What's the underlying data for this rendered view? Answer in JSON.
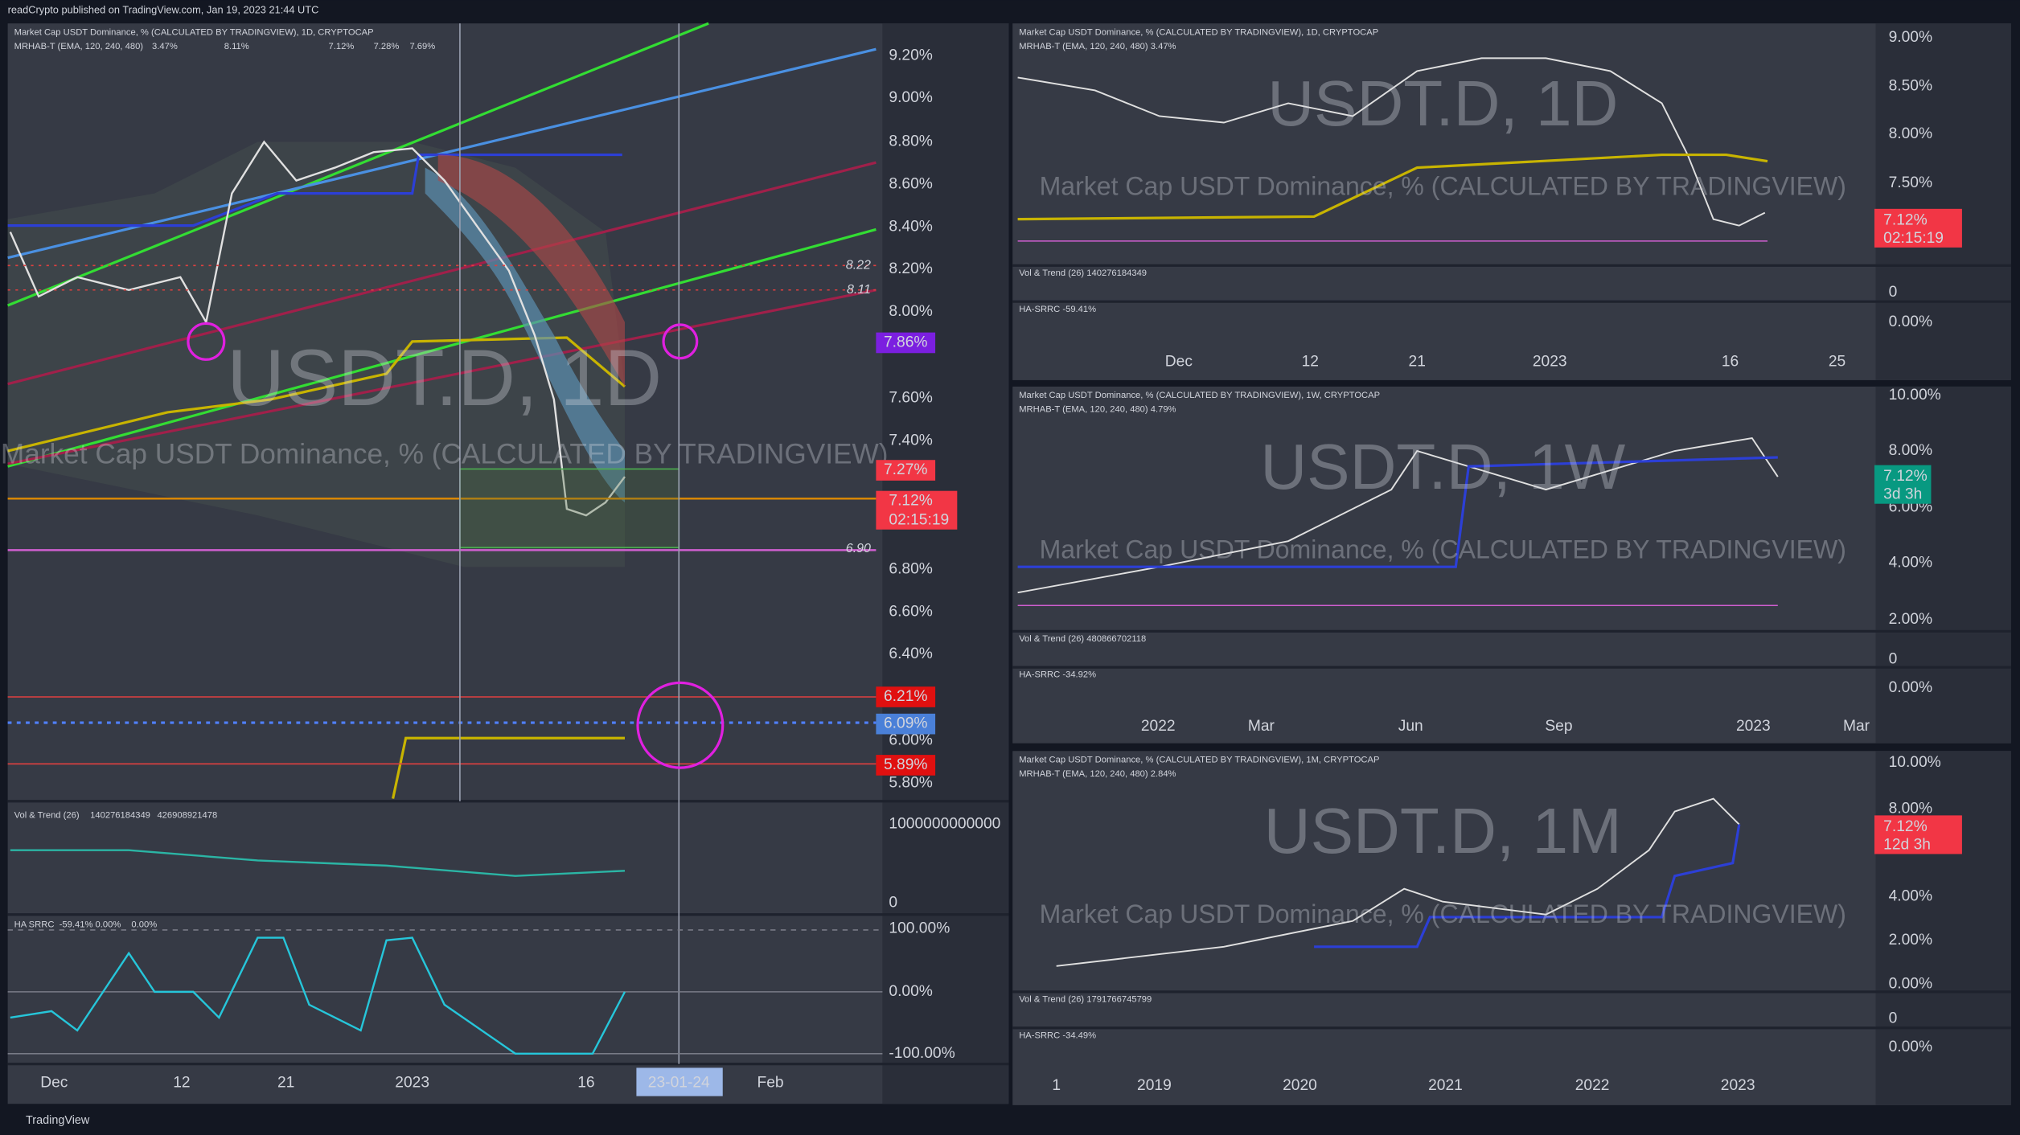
{
  "header": {
    "title": "readCrypto published on TradingView.com, Jan 19, 2023 21:44 UTC"
  },
  "footer": {
    "brand": "TradingView"
  },
  "main": {
    "legend": "Market Cap USDT Dominance, % (CALCULATED BY TRADINGVIEW), 1D, CRYPTOCAP",
    "indicator": "MRHAB-T (EMA, 120, 240, 480)",
    "indicator_values": [
      "3.47%",
      "8.11%",
      "7.12%",
      "7.28%",
      "7.69%"
    ],
    "watermark": "USDT.D, 1D",
    "watermark_sub": "Market Cap USDT Dominance, % (CALCULATED BY TRADINGVIEW)",
    "price_axis": [
      "9.20%",
      "9.00%",
      "8.80%",
      "8.60%",
      "8.40%",
      "8.20%",
      "8.00%",
      "7.60%",
      "7.40%",
      "6.80%",
      "6.60%",
      "6.40%",
      "6.00%",
      "5.80%"
    ],
    "tags": [
      "7.86%",
      "7.27%",
      "7.12%",
      "02:15:19",
      "6.21%",
      "6.09%",
      "5.89%"
    ],
    "levels": [
      "8.22",
      "8.11",
      "6.90"
    ],
    "time_axis": [
      "Dec",
      "12",
      "21",
      "2023",
      "16",
      "23-01-24",
      "Feb"
    ],
    "vol": {
      "label": "Vol & Trend (26)",
      "values": [
        "140276184349",
        "426908921478"
      ],
      "axis": [
        "1000000000000",
        "0"
      ]
    },
    "srrc": {
      "label": "HA SRRC",
      "values": [
        "-59.41%",
        "0.00%",
        "0.00%"
      ],
      "axis": [
        "100.00%",
        "0.00%",
        "-100.00%"
      ]
    }
  },
  "panels": [
    {
      "legend": "Market Cap USDT Dominance, % (CALCULATED BY TRADINGVIEW), 1D, CRYPTOCAP",
      "indicator": "MRHAB-T (EMA, 120, 240, 480) 3.47%",
      "watermark": "USDT.D, 1D",
      "watermark_sub": "Market Cap USDT Dominance, % (CALCULATED BY TRADINGVIEW)",
      "price_axis": [
        "9.00%",
        "8.50%",
        "8.00%",
        "7.50%"
      ],
      "tag": [
        "7.12%",
        "02:15:19"
      ],
      "sub_axis": [
        "0",
        "0.00%"
      ],
      "vol": "Vol & Trend (26) 140276184349",
      "srrc": "HA-SRRC -59.41%",
      "time_axis": [
        "Dec",
        "12",
        "21",
        "2023",
        "16",
        "25"
      ]
    },
    {
      "legend": "Market Cap USDT Dominance, % (CALCULATED BY TRADINGVIEW), 1W, CRYPTOCAP",
      "indicator": "MRHAB-T (EMA, 120, 240, 480) 4.79%",
      "watermark": "USDT.D, 1W",
      "watermark_sub": "Market Cap USDT Dominance, % (CALCULATED BY TRADINGVIEW)",
      "price_axis": [
        "10.00%",
        "8.00%",
        "6.00%",
        "4.00%",
        "2.00%"
      ],
      "tag": [
        "7.12%",
        "3d 3h"
      ],
      "sub_axis": [
        "0",
        "0.00%"
      ],
      "vol": "Vol & Trend (26) 480866702118",
      "srrc": "HA-SRRC -34.92%",
      "time_axis": [
        "2022",
        "Mar",
        "Jun",
        "Sep",
        "2023",
        "Mar"
      ]
    },
    {
      "legend": "Market Cap USDT Dominance, % (CALCULATED BY TRADINGVIEW), 1M, CRYPTOCAP",
      "indicator": "MRHAB-T (EMA, 120, 240, 480) 2.84%",
      "watermark": "USDT.D, 1M",
      "watermark_sub": "Market Cap USDT Dominance, % (CALCULATED BY TRADINGVIEW)",
      "price_axis": [
        "10.00%",
        "8.00%",
        "4.00%",
        "2.00%",
        "0.00%"
      ],
      "tag": [
        "7.12%",
        "12d 3h"
      ],
      "sub_axis": [
        "0",
        "0.00%"
      ],
      "vol": "Vol & Trend (26) 1791766745799",
      "srrc": "HA-SRRC -34.49%",
      "time_axis": [
        "1",
        "2019",
        "2020",
        "2021",
        "2022",
        "2023"
      ]
    }
  ]
}
